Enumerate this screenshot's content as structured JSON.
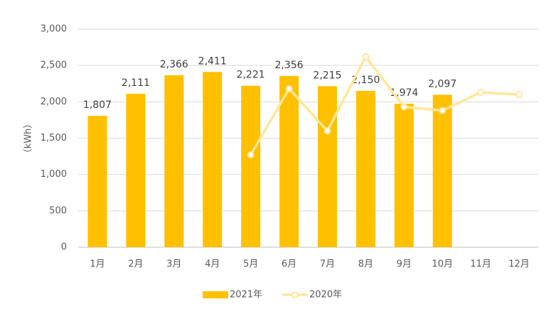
{
  "chart_data": {
    "type": "bar_line",
    "y_label": "（kWh）",
    "categories": [
      "1月",
      "2月",
      "3月",
      "4月",
      "5月",
      "6月",
      "7月",
      "8月",
      "9月",
      "10月",
      "11月",
      "12月"
    ],
    "series": [
      {
        "name": "2021年",
        "type": "bar",
        "color": "#ffc000",
        "values": [
          1807,
          2111,
          2366,
          2411,
          2221,
          2356,
          2215,
          2150,
          1974,
          2097,
          null,
          null
        ],
        "value_labels": [
          "1,807",
          "2,111",
          "2,366",
          "2,411",
          "2,221",
          "2,356",
          "2,215",
          "2,150",
          "1,974",
          "2,097",
          null,
          null
        ]
      },
      {
        "name": "2020年",
        "type": "line",
        "color": "#ffe699",
        "values": [
          null,
          null,
          null,
          null,
          1270,
          2180,
          1600,
          2620,
          1930,
          1880,
          2130,
          2100
        ]
      }
    ],
    "ylim": [
      0,
      3000
    ],
    "yticks": [
      0,
      500,
      {
        "value": 1000,
        "label": "1,000"
      },
      {
        "value": 1500,
        "label": "1,500"
      },
      {
        "value": 2000,
        "label": "2,000"
      },
      {
        "value": 2500,
        "label": "2,500"
      },
      {
        "value": 3000,
        "label": "3,000"
      }
    ],
    "grid": true,
    "legend": "bottom"
  }
}
